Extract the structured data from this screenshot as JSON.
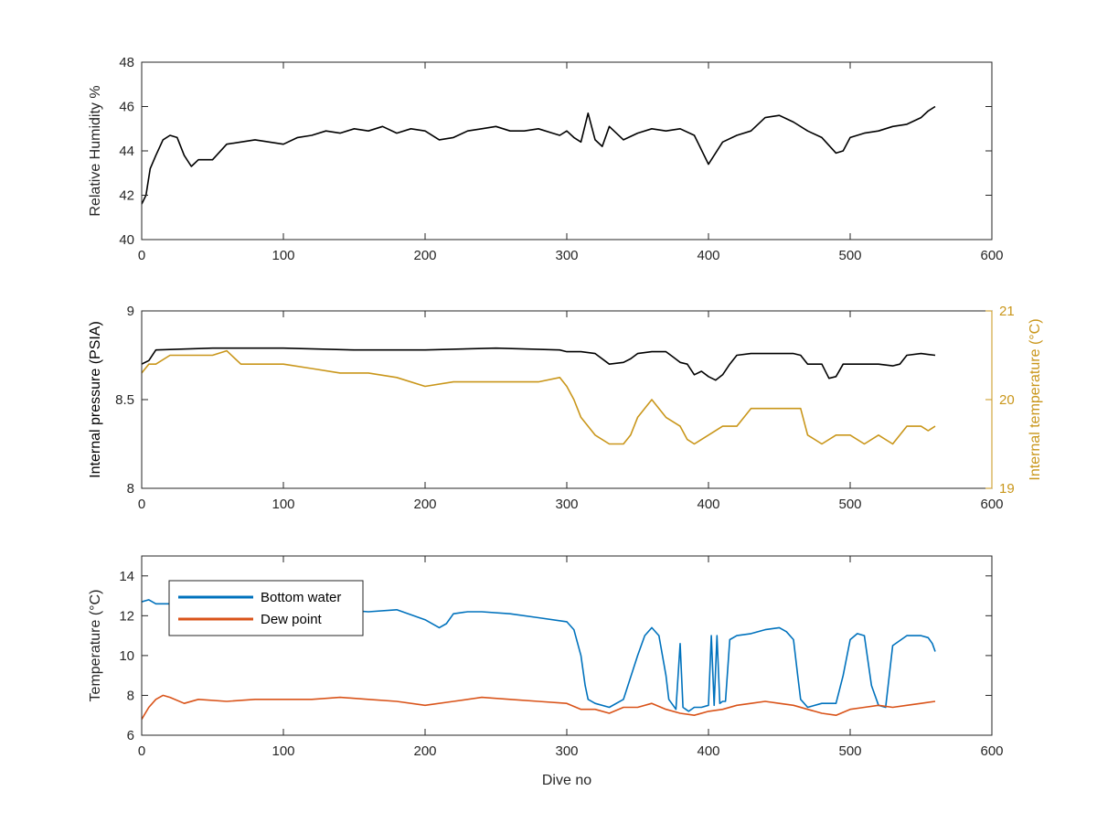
{
  "chart_data": [
    {
      "type": "line",
      "xlabel": "",
      "ylabel": "Relative Humidity %",
      "xlim": [
        0,
        600
      ],
      "ylim": [
        40,
        48
      ],
      "xticks": [
        0,
        100,
        200,
        300,
        400,
        500,
        600
      ],
      "yticks": [
        40,
        42,
        44,
        46,
        48
      ],
      "series": [
        {
          "color": "#000000",
          "x": [
            0,
            3,
            6,
            10,
            15,
            20,
            25,
            30,
            35,
            40,
            50,
            60,
            70,
            80,
            90,
            100,
            110,
            120,
            130,
            140,
            150,
            160,
            170,
            180,
            190,
            200,
            210,
            220,
            230,
            240,
            250,
            260,
            270,
            280,
            290,
            295,
            300,
            305,
            310,
            315,
            320,
            325,
            330,
            340,
            350,
            360,
            370,
            380,
            390,
            400,
            410,
            420,
            430,
            440,
            450,
            460,
            470,
            480,
            490,
            495,
            500,
            510,
            520,
            530,
            540,
            550,
            555,
            560
          ],
          "y": [
            41.6,
            42.0,
            43.2,
            43.8,
            44.5,
            44.7,
            44.6,
            43.8,
            43.3,
            43.6,
            43.6,
            44.3,
            44.4,
            44.5,
            44.4,
            44.3,
            44.6,
            44.7,
            44.9,
            44.8,
            45.0,
            44.9,
            45.1,
            44.8,
            45.0,
            44.9,
            44.5,
            44.6,
            44.9,
            45.0,
            45.1,
            44.9,
            44.9,
            45.0,
            44.8,
            44.7,
            44.9,
            44.6,
            44.4,
            45.7,
            44.5,
            44.2,
            45.1,
            44.5,
            44.8,
            45.0,
            44.9,
            45.0,
            44.7,
            43.4,
            44.4,
            44.7,
            44.9,
            45.5,
            45.6,
            45.3,
            44.9,
            44.6,
            43.9,
            44.0,
            44.6,
            44.8,
            44.9,
            45.1,
            45.2,
            45.5,
            45.8,
            46.0
          ]
        }
      ]
    },
    {
      "type": "line",
      "xlabel": "",
      "ylabel": "Internal pressure (PSIA)",
      "ylabel_right": "Internal temperature (°C)",
      "xlim": [
        0,
        600
      ],
      "ylim": [
        8,
        9
      ],
      "ylim_right": [
        19,
        21
      ],
      "xticks": [
        0,
        100,
        200,
        300,
        400,
        500,
        600
      ],
      "yticks": [
        8,
        8.5,
        9
      ],
      "yticks_right": [
        19,
        20,
        21
      ],
      "series": [
        {
          "axis": "left",
          "color": "#000000",
          "x": [
            0,
            5,
            10,
            50,
            100,
            150,
            200,
            250,
            295,
            300,
            310,
            320,
            330,
            340,
            345,
            350,
            360,
            370,
            375,
            380,
            385,
            390,
            395,
            400,
            405,
            410,
            415,
            420,
            430,
            440,
            450,
            460,
            465,
            470,
            480,
            485,
            490,
            495,
            500,
            510,
            520,
            530,
            535,
            540,
            550,
            560
          ],
          "y": [
            8.7,
            8.72,
            8.78,
            8.79,
            8.79,
            8.78,
            8.78,
            8.79,
            8.78,
            8.77,
            8.77,
            8.76,
            8.7,
            8.71,
            8.73,
            8.76,
            8.77,
            8.77,
            8.74,
            8.71,
            8.7,
            8.64,
            8.66,
            8.63,
            8.61,
            8.64,
            8.7,
            8.75,
            8.76,
            8.76,
            8.76,
            8.76,
            8.75,
            8.7,
            8.7,
            8.62,
            8.63,
            8.7,
            8.7,
            8.7,
            8.7,
            8.69,
            8.7,
            8.75,
            8.76,
            8.75
          ]
        },
        {
          "axis": "right",
          "color": "#C9961A",
          "x": [
            0,
            5,
            10,
            20,
            30,
            40,
            50,
            60,
            70,
            80,
            100,
            120,
            140,
            160,
            180,
            200,
            220,
            240,
            260,
            280,
            295,
            300,
            305,
            310,
            315,
            320,
            330,
            340,
            345,
            350,
            360,
            370,
            380,
            385,
            390,
            400,
            410,
            420,
            430,
            440,
            460,
            465,
            470,
            480,
            490,
            500,
            510,
            520,
            530,
            540,
            550,
            555,
            560
          ],
          "y": [
            20.3,
            20.4,
            20.4,
            20.5,
            20.5,
            20.5,
            20.5,
            20.55,
            20.4,
            20.4,
            20.4,
            20.35,
            20.3,
            20.3,
            20.25,
            20.15,
            20.2,
            20.2,
            20.2,
            20.2,
            20.25,
            20.15,
            20.0,
            19.8,
            19.7,
            19.6,
            19.5,
            19.5,
            19.6,
            19.8,
            20.0,
            19.8,
            19.7,
            19.55,
            19.5,
            19.6,
            19.7,
            19.7,
            19.9,
            19.9,
            19.9,
            19.9,
            19.6,
            19.5,
            19.6,
            19.6,
            19.5,
            19.6,
            19.5,
            19.7,
            19.7,
            19.65,
            19.7
          ]
        }
      ]
    },
    {
      "type": "line",
      "xlabel": "Dive no",
      "ylabel": "Temperature (°C)",
      "xlim": [
        0,
        600
      ],
      "ylim": [
        6,
        15
      ],
      "xticks": [
        0,
        100,
        200,
        300,
        400,
        500,
        600
      ],
      "yticks": [
        6,
        8,
        10,
        12,
        14
      ],
      "legend_position": "top-left",
      "series": [
        {
          "name": "Bottom water",
          "color": "#0072BD",
          "x": [
            0,
            5,
            10,
            20,
            40,
            60,
            80,
            100,
            120,
            140,
            160,
            180,
            200,
            210,
            215,
            220,
            230,
            240,
            260,
            280,
            300,
            305,
            310,
            313,
            315,
            320,
            330,
            340,
            350,
            355,
            360,
            365,
            370,
            372,
            375,
            377,
            380,
            382,
            384,
            386,
            390,
            395,
            400,
            402,
            404,
            406,
            408,
            410,
            412,
            415,
            420,
            430,
            440,
            450,
            455,
            460,
            463,
            465,
            470,
            480,
            490,
            495,
            500,
            505,
            510,
            515,
            520,
            525,
            530,
            540,
            550,
            555,
            558,
            560
          ],
          "y": [
            12.7,
            12.8,
            12.6,
            12.6,
            12.5,
            12.4,
            12.3,
            12.3,
            12.2,
            12.3,
            12.2,
            12.3,
            11.8,
            11.4,
            11.6,
            12.1,
            12.2,
            12.2,
            12.1,
            11.9,
            11.7,
            11.3,
            10.0,
            8.5,
            7.8,
            7.6,
            7.4,
            7.8,
            10.0,
            11.0,
            11.4,
            11.0,
            9.0,
            7.8,
            7.5,
            7.3,
            10.6,
            7.4,
            7.3,
            7.2,
            7.4,
            7.4,
            7.5,
            11.0,
            7.5,
            11.0,
            7.6,
            7.7,
            7.7,
            10.8,
            11.0,
            11.1,
            11.3,
            11.4,
            11.2,
            10.8,
            9.0,
            7.8,
            7.4,
            7.6,
            7.6,
            9.0,
            10.8,
            11.1,
            11.0,
            8.5,
            7.5,
            7.4,
            10.5,
            11.0,
            11.0,
            10.9,
            10.6,
            10.2
          ]
        },
        {
          "name": "Dew point",
          "color": "#D95319",
          "x": [
            0,
            5,
            10,
            15,
            20,
            30,
            40,
            60,
            80,
            100,
            120,
            140,
            160,
            180,
            200,
            220,
            240,
            260,
            280,
            300,
            310,
            320,
            330,
            340,
            350,
            360,
            370,
            380,
            390,
            400,
            410,
            420,
            430,
            440,
            450,
            460,
            470,
            480,
            490,
            500,
            510,
            520,
            530,
            540,
            550,
            560
          ],
          "y": [
            6.8,
            7.4,
            7.8,
            8.0,
            7.9,
            7.6,
            7.8,
            7.7,
            7.8,
            7.8,
            7.8,
            7.9,
            7.8,
            7.7,
            7.5,
            7.7,
            7.9,
            7.8,
            7.7,
            7.6,
            7.3,
            7.3,
            7.1,
            7.4,
            7.4,
            7.6,
            7.3,
            7.1,
            7.0,
            7.2,
            7.3,
            7.5,
            7.6,
            7.7,
            7.6,
            7.5,
            7.3,
            7.1,
            7.0,
            7.3,
            7.4,
            7.5,
            7.4,
            7.5,
            7.6,
            7.7
          ]
        }
      ]
    }
  ]
}
